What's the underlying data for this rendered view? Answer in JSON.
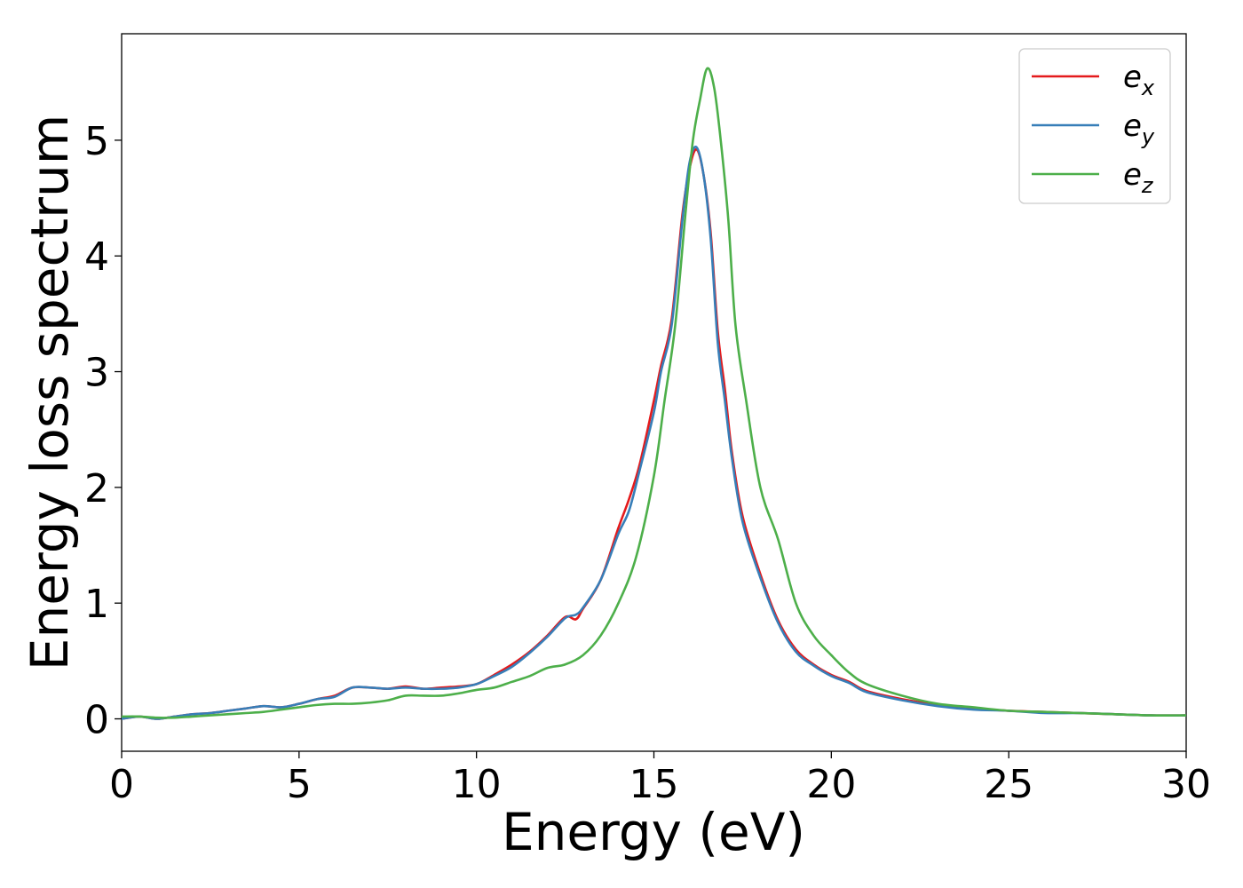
{
  "chart_data": {
    "type": "line",
    "title": "",
    "xlabel": "Energy (eV)",
    "ylabel": "Energy loss spectrum",
    "xlim": [
      0,
      30
    ],
    "ylim": [
      -0.28,
      5.92
    ],
    "xticks": [
      0,
      5,
      10,
      15,
      20,
      25,
      30
    ],
    "yticks": [
      0,
      1,
      2,
      3,
      4,
      5
    ],
    "grid": false,
    "legend_position": "top-right",
    "series": [
      {
        "name": "e",
        "subscript": "x",
        "color": "#e41a1c",
        "x": [
          0,
          0.5,
          1,
          1.5,
          2,
          2.5,
          3,
          3.5,
          4,
          4.5,
          5,
          5.5,
          6,
          6.5,
          7,
          7.5,
          8,
          8.5,
          9,
          9.5,
          10,
          10.5,
          11,
          11.5,
          12,
          12.5,
          12.8,
          13,
          13.5,
          14,
          14.3,
          14.6,
          15,
          15.2,
          15.5,
          15.8,
          16,
          16.2,
          16.4,
          16.6,
          16.8,
          17,
          17.2,
          17.5,
          18,
          18.5,
          19,
          19.5,
          20,
          20.5,
          21,
          22,
          23,
          24,
          25,
          26,
          27,
          28,
          29,
          30
        ],
        "y": [
          0.0,
          0.02,
          0.0,
          0.02,
          0.04,
          0.05,
          0.07,
          0.09,
          0.11,
          0.1,
          0.13,
          0.17,
          0.2,
          0.27,
          0.27,
          0.26,
          0.28,
          0.26,
          0.27,
          0.28,
          0.3,
          0.38,
          0.47,
          0.58,
          0.72,
          0.88,
          0.86,
          0.95,
          1.2,
          1.65,
          1.9,
          2.2,
          2.75,
          3.05,
          3.45,
          4.35,
          4.75,
          4.92,
          4.7,
          4.2,
          3.35,
          2.85,
          2.3,
          1.75,
          1.25,
          0.85,
          0.6,
          0.47,
          0.38,
          0.32,
          0.24,
          0.17,
          0.12,
          0.09,
          0.07,
          0.06,
          0.05,
          0.04,
          0.03,
          0.03
        ]
      },
      {
        "name": "e",
        "subscript": "y",
        "color": "#377eb8",
        "x": [
          0,
          0.5,
          1,
          1.5,
          2,
          2.5,
          3,
          3.5,
          4,
          4.5,
          5,
          5.5,
          6,
          6.5,
          7,
          7.5,
          8,
          8.5,
          9,
          9.5,
          10,
          10.5,
          11,
          11.5,
          12,
          12.5,
          12.8,
          13,
          13.5,
          14,
          14.3,
          14.6,
          15,
          15.2,
          15.5,
          15.8,
          16,
          16.2,
          16.4,
          16.6,
          16.8,
          17,
          17.2,
          17.5,
          18,
          18.5,
          19,
          19.5,
          20,
          20.5,
          21,
          22,
          23,
          24,
          25,
          26,
          27,
          28,
          29,
          30
        ],
        "y": [
          0.0,
          0.02,
          0.0,
          0.02,
          0.04,
          0.05,
          0.07,
          0.09,
          0.11,
          0.1,
          0.13,
          0.17,
          0.19,
          0.27,
          0.27,
          0.26,
          0.27,
          0.26,
          0.26,
          0.27,
          0.3,
          0.37,
          0.45,
          0.57,
          0.71,
          0.87,
          0.9,
          0.96,
          1.2,
          1.6,
          1.8,
          2.15,
          2.65,
          3.0,
          3.4,
          4.3,
          4.8,
          4.94,
          4.7,
          4.15,
          3.25,
          2.75,
          2.25,
          1.7,
          1.22,
          0.83,
          0.58,
          0.46,
          0.37,
          0.31,
          0.23,
          0.16,
          0.11,
          0.08,
          0.07,
          0.05,
          0.05,
          0.04,
          0.03,
          0.03
        ]
      },
      {
        "name": "e",
        "subscript": "z",
        "color": "#4daf4a",
        "x": [
          0,
          0.5,
          1,
          1.5,
          2,
          2.5,
          3,
          3.5,
          4,
          4.5,
          5,
          5.5,
          6,
          6.5,
          7,
          7.5,
          8,
          8.5,
          9,
          9.5,
          10,
          10.5,
          11,
          11.5,
          12,
          12.5,
          13,
          13.5,
          14,
          14.5,
          15,
          15.3,
          15.6,
          15.9,
          16.1,
          16.3,
          16.5,
          16.7,
          16.9,
          17.1,
          17.3,
          17.6,
          18,
          18.5,
          19,
          19.5,
          20,
          20.5,
          21,
          22,
          23,
          24,
          25,
          26,
          27,
          28,
          29,
          30
        ],
        "y": [
          0.02,
          0.02,
          0.01,
          0.01,
          0.02,
          0.03,
          0.04,
          0.05,
          0.06,
          0.08,
          0.1,
          0.12,
          0.13,
          0.13,
          0.14,
          0.16,
          0.2,
          0.2,
          0.2,
          0.22,
          0.25,
          0.27,
          0.32,
          0.37,
          0.44,
          0.47,
          0.55,
          0.72,
          1.0,
          1.4,
          2.1,
          2.75,
          3.4,
          4.4,
          5.0,
          5.35,
          5.62,
          5.45,
          4.95,
          4.3,
          3.4,
          2.75,
          2.0,
          1.55,
          1.0,
          0.72,
          0.55,
          0.4,
          0.3,
          0.2,
          0.13,
          0.1,
          0.07,
          0.06,
          0.05,
          0.04,
          0.03,
          0.03
        ]
      }
    ]
  }
}
